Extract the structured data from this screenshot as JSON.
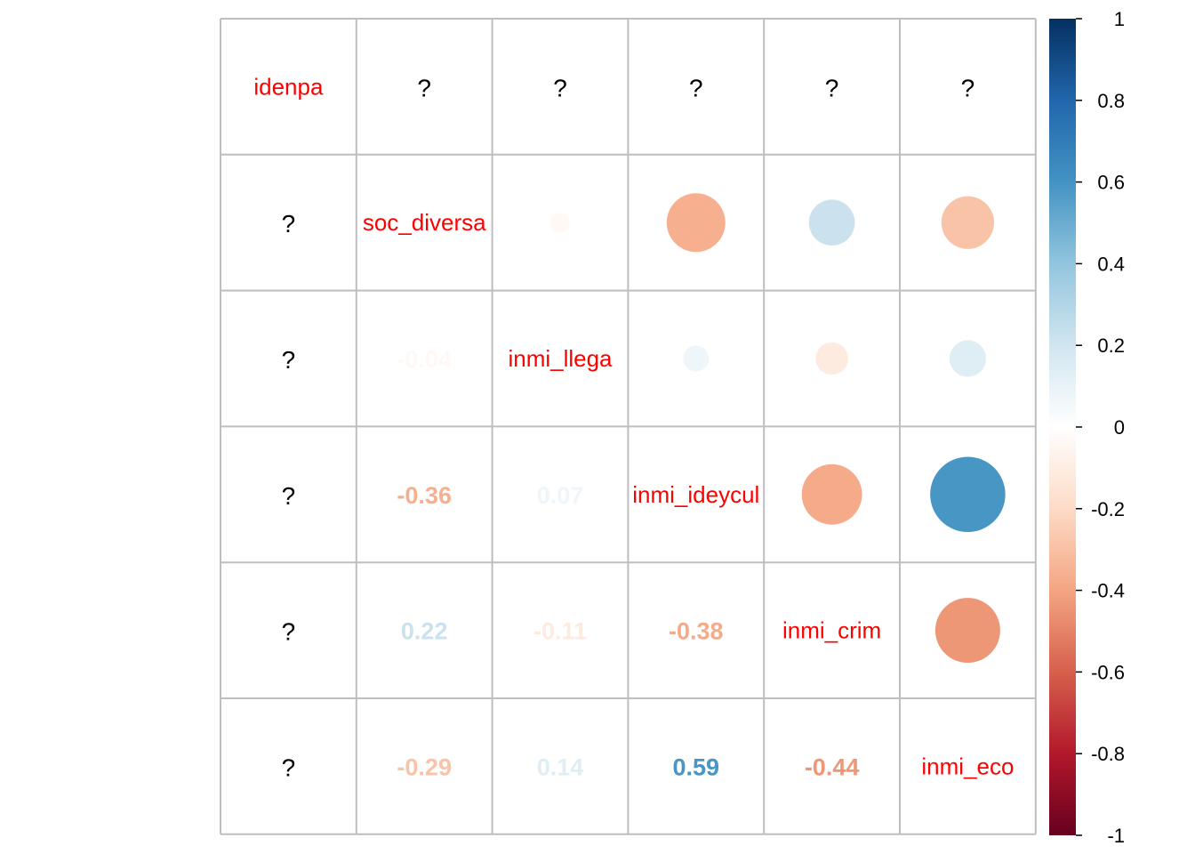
{
  "chart_data": {
    "type": "heatmap",
    "method": "mixed: upper triangle circles, lower triangle numbers, diagonal variable names",
    "variables": [
      "idenpa",
      "soc_diversa",
      "inmi_llega",
      "inmi_ideycul",
      "inmi_crim",
      "inmi_eco"
    ],
    "missing_symbol": "?",
    "label_color": "#ff0000",
    "matrix": [
      [
        null,
        null,
        null,
        null,
        null,
        null
      ],
      [
        null,
        1,
        -0.04,
        -0.36,
        0.22,
        -0.29
      ],
      [
        null,
        -0.04,
        1,
        0.07,
        -0.11,
        0.14
      ],
      [
        null,
        -0.36,
        0.07,
        1,
        -0.38,
        0.59
      ],
      [
        null,
        0.22,
        -0.11,
        -0.38,
        1,
        -0.44
      ],
      [
        null,
        -0.29,
        0.14,
        0.59,
        -0.44,
        1
      ]
    ],
    "number_labels": [
      {
        "row": 2,
        "col": 1,
        "text": "-0.04"
      },
      {
        "row": 3,
        "col": 1,
        "text": "-0.36"
      },
      {
        "row": 3,
        "col": 2,
        "text": "0.07"
      },
      {
        "row": 4,
        "col": 1,
        "text": "0.22"
      },
      {
        "row": 4,
        "col": 2,
        "text": "-0.11"
      },
      {
        "row": 4,
        "col": 3,
        "text": "-0.38"
      },
      {
        "row": 5,
        "col": 1,
        "text": "-0.29"
      },
      {
        "row": 5,
        "col": 2,
        "text": "0.14"
      },
      {
        "row": 5,
        "col": 3,
        "text": "0.59"
      },
      {
        "row": 5,
        "col": 4,
        "text": "-0.44"
      }
    ],
    "colorbar": {
      "range": [
        -1,
        1
      ],
      "tick_labels": [
        "1",
        "0.8",
        "0.6",
        "0.4",
        "0.2",
        "0",
        "-0.2",
        "-0.4",
        "-0.6",
        "-0.8",
        "-1"
      ],
      "tick_values": [
        1,
        0.8,
        0.6,
        0.4,
        0.2,
        0,
        -0.2,
        -0.4,
        -0.6,
        -0.8,
        -1
      ],
      "palette": [
        "#67001f",
        "#b2182b",
        "#d6604d",
        "#f4a582",
        "#fddbc7",
        "#ffffff",
        "#d1e5f0",
        "#92c5de",
        "#4393c3",
        "#2166ac",
        "#053061"
      ]
    },
    "grid": true,
    "legend_position": "right"
  }
}
